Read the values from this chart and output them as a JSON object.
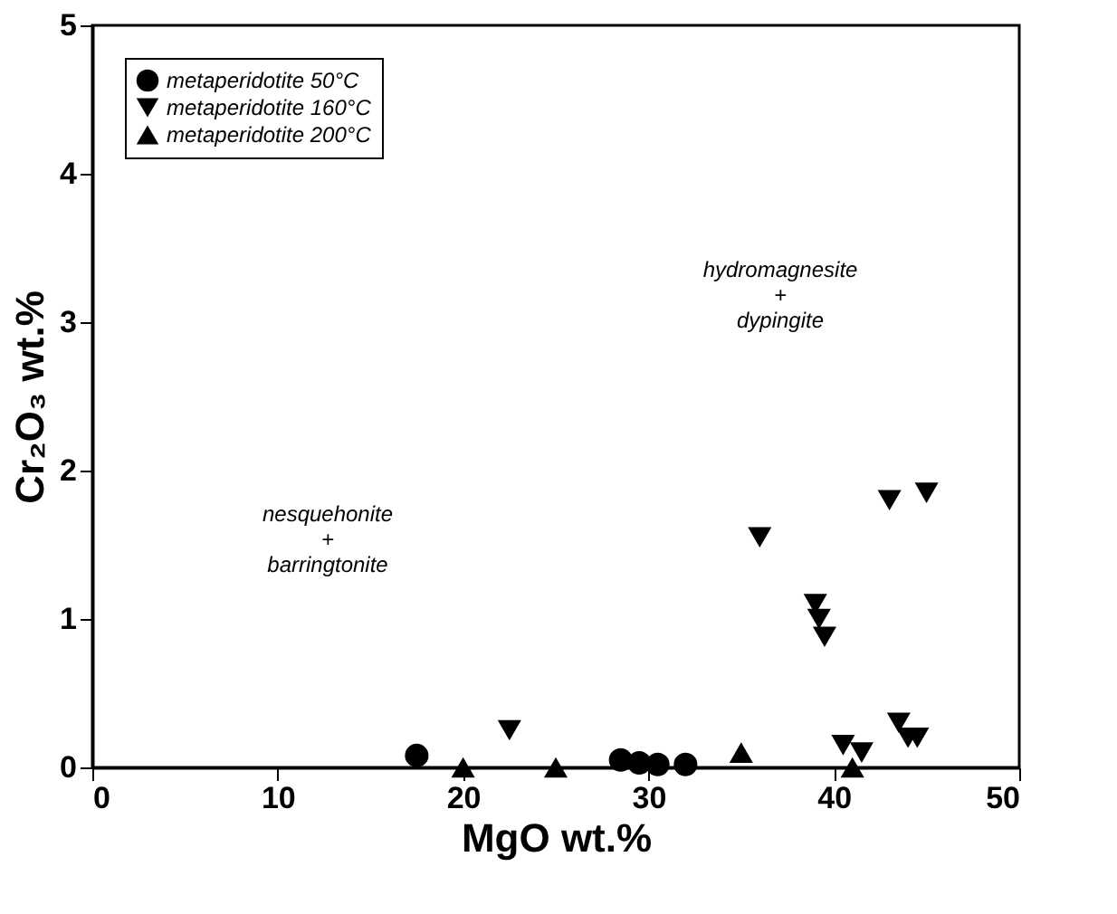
{
  "chart_data": {
    "type": "scatter",
    "xlabel": "MgO wt.%",
    "ylabel": "Cr₂O₃ wt.%",
    "xlim": [
      0,
      50
    ],
    "xticks": [
      0,
      10,
      20,
      30,
      40,
      50
    ],
    "ylim": [
      0,
      5
    ],
    "yticks": [
      0,
      1,
      2,
      3,
      4,
      5
    ],
    "grid": false,
    "legend": "top left",
    "series": [
      {
        "name": "metaperidotite 50°C",
        "color": "#000000",
        "marker": "circle",
        "x": [
          17.5,
          28.5,
          29.5,
          30.5,
          32
        ],
        "values": [
          0.08,
          0.05,
          0.03,
          0.02,
          0.02
        ]
      },
      {
        "name": "metaperidotite 160°C",
        "color": "#000000",
        "marker": "triangle-down",
        "x": [
          22.5,
          36,
          39,
          39.2,
          39.5,
          40.5,
          41.5,
          43,
          45,
          43.5,
          44,
          44.5
        ],
        "values": [
          0.25,
          1.55,
          1.1,
          1.0,
          0.88,
          0.15,
          0.1,
          1.8,
          1.85,
          0.3,
          0.2,
          0.2
        ]
      },
      {
        "name": "metaperidotite 200°C",
        "color": "#000000",
        "marker": "triangle-up",
        "x": [
          20,
          25,
          35,
          41
        ],
        "values": [
          0.0,
          0.0,
          0.1,
          0.0
        ]
      }
    ],
    "annotations": [
      "nesquehonite\n+\nbarringtonite",
      "hydromagnesite\n+\ndypingite"
    ]
  }
}
